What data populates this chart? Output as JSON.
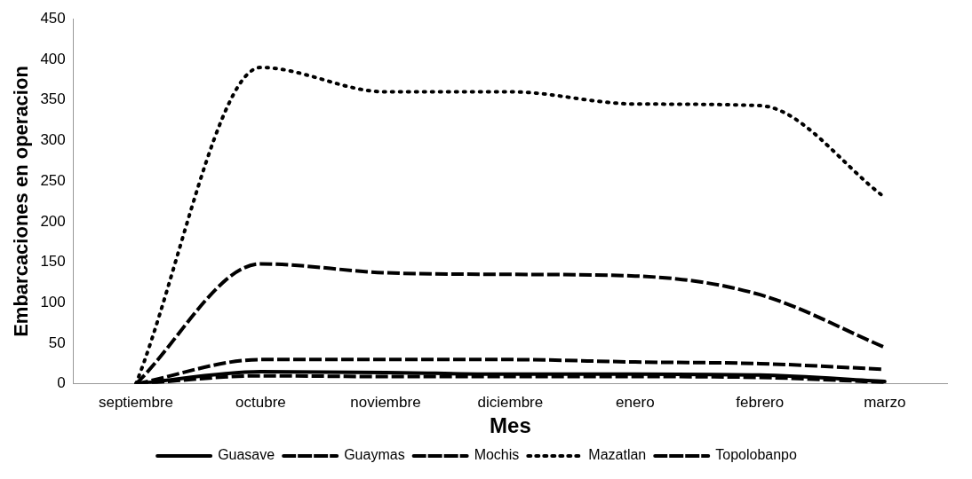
{
  "chart_data": {
    "type": "line",
    "xlabel": "Mes",
    "ylabel": "Embarcaciones en operacion",
    "categories": [
      "septiembre",
      "octubre",
      "noviembre",
      "diciembre",
      "enero",
      "febrero",
      "marzo"
    ],
    "series": [
      {
        "name": "Guasave",
        "color": "#000000",
        "line_style": "solid",
        "values": [
          0,
          15,
          14,
          12,
          12,
          11,
          3
        ]
      },
      {
        "name": "Guaymas",
        "color": "#000000",
        "line_style": "dashed",
        "values": [
          0,
          148,
          137,
          135,
          133,
          110,
          45
        ]
      },
      {
        "name": "Mochis",
        "color": "#000000",
        "line_style": "dashed",
        "values": [
          0,
          30,
          30,
          30,
          27,
          25,
          18
        ]
      },
      {
        "name": "Mazatlan",
        "color": "#000000",
        "line_style": "dotted",
        "values": [
          0,
          390,
          360,
          360,
          345,
          343,
          230
        ]
      },
      {
        "name": "Topolobanpo",
        "color": "#000000",
        "line_style": "dashed",
        "values": [
          0,
          10,
          9,
          9,
          9,
          8,
          2
        ]
      }
    ],
    "ylim": [
      0,
      450
    ],
    "yticks": [
      0,
      50,
      100,
      150,
      200,
      250,
      300,
      350,
      400,
      450
    ],
    "grid": false,
    "legend": "bottom",
    "marker": "none"
  }
}
